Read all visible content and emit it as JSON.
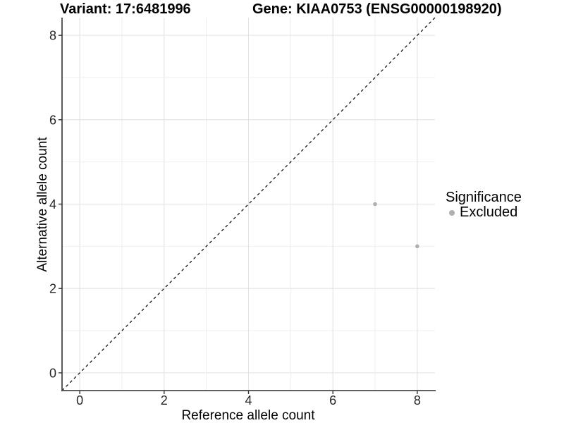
{
  "titles": {
    "variant": "Variant: 17:6481996",
    "gene": "Gene: KIAA0753 (ENSG00000198920)"
  },
  "chart_data": {
    "type": "scatter",
    "xlabel": "Reference allele count",
    "ylabel": "Alternative allele count",
    "xlim": [
      -0.42,
      8.42
    ],
    "ylim": [
      -0.42,
      8.42
    ],
    "x_ticks": [
      0,
      2,
      4,
      6,
      8
    ],
    "y_ticks": [
      0,
      2,
      4,
      6,
      8
    ],
    "grid_ticks": [
      0,
      1,
      2,
      3,
      4,
      5,
      6,
      7,
      8
    ],
    "grid": true,
    "identity_line": {
      "type": "y=x",
      "style": "dashed"
    },
    "points": [
      {
        "x": 7,
        "y": 4,
        "significance": "Excluded"
      },
      {
        "x": 8,
        "y": 3,
        "significance": "Excluded"
      }
    ],
    "legend": {
      "title": "Significance",
      "position": "right",
      "items": [
        {
          "label": "Excluded",
          "color": "#b0b0b0"
        }
      ]
    }
  },
  "colors": {
    "background": "#ffffff",
    "point_excluded": "#b0b0b0",
    "grid_major": "#e2e2e2",
    "grid_minor": "#ededed",
    "axis_line": "#4a4a4a",
    "tick_mark": "#333333",
    "identity_line": "#000000"
  }
}
